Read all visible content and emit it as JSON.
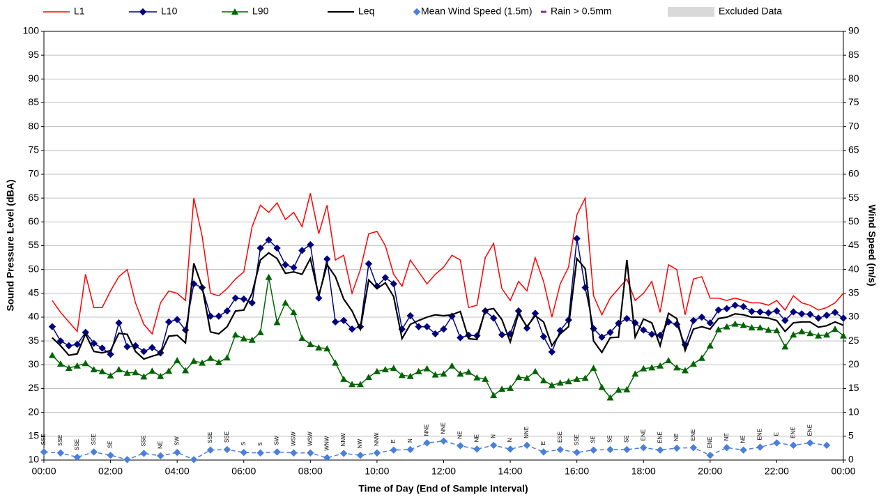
{
  "chart_data": {
    "type": "line",
    "ylabel": "Sound Pressure Level (dBA)",
    "y2label": "Wind Speed (m/s)",
    "xlabel": "Time of Day (End of Sample Interval)",
    "xlim": [
      0,
      24
    ],
    "xticks": [
      {
        "value": 0,
        "label": "00:00"
      },
      {
        "value": 2,
        "label": "02:00"
      },
      {
        "value": 4,
        "label": "04:00"
      },
      {
        "value": 6,
        "label": "06:00"
      },
      {
        "value": 8,
        "label": "08:00"
      },
      {
        "value": 10,
        "label": "10:00"
      },
      {
        "value": 12,
        "label": "12:00"
      },
      {
        "value": 14,
        "label": "14:00"
      },
      {
        "value": 16,
        "label": "16:00"
      },
      {
        "value": 18,
        "label": "18:00"
      },
      {
        "value": 20,
        "label": "20:00"
      },
      {
        "value": 22,
        "label": "22:00"
      },
      {
        "value": 24,
        "label": "00:00"
      }
    ],
    "ylim": [
      10,
      100
    ],
    "yticks": [
      10,
      15,
      20,
      25,
      30,
      35,
      40,
      45,
      50,
      55,
      60,
      65,
      70,
      75,
      80,
      85,
      90,
      95,
      100
    ],
    "y2lim": [
      0,
      90
    ],
    "y2ticks": [
      0,
      5,
      10,
      15,
      20,
      25,
      30,
      35,
      40,
      45,
      50,
      55,
      60,
      65,
      70,
      75,
      80,
      85,
      90
    ],
    "grid": true,
    "x": [
      0.25,
      0.5,
      0.75,
      1,
      1.25,
      1.5,
      1.75,
      2,
      2.25,
      2.5,
      2.75,
      3,
      3.25,
      3.5,
      3.75,
      4,
      4.25,
      4.5,
      4.75,
      5,
      5.25,
      5.5,
      5.75,
      6,
      6.25,
      6.5,
      6.75,
      7,
      7.25,
      7.5,
      7.75,
      8,
      8.25,
      8.5,
      8.75,
      9,
      9.25,
      9.5,
      9.75,
      10,
      10.25,
      10.5,
      10.75,
      11,
      11.25,
      11.5,
      11.75,
      12,
      12.25,
      12.5,
      12.75,
      13,
      13.25,
      13.5,
      13.75,
      14,
      14.25,
      14.5,
      14.75,
      15,
      15.25,
      15.5,
      15.75,
      16,
      16.25,
      16.5,
      16.75,
      17,
      17.25,
      17.5,
      17.75,
      18,
      18.25,
      18.5,
      18.75,
      19,
      19.25,
      19.5,
      19.75,
      20,
      20.25,
      20.5,
      20.75,
      21,
      21.25,
      21.5,
      21.75,
      22,
      22.25,
      22.5,
      22.75,
      23,
      23.25,
      23.5,
      23.75,
      24
    ],
    "series": [
      {
        "name": "L1",
        "color": "#ff0000",
        "marker": "none",
        "line_style": "solid",
        "values": [
          43.5,
          41,
          39,
          37,
          49,
          42,
          42,
          45.5,
          48.5,
          50,
          43,
          38.5,
          36.5,
          43,
          45.5,
          45,
          43.5,
          65,
          57,
          45,
          44.5,
          46,
          48,
          49.5,
          59,
          63.5,
          62,
          64,
          60.5,
          62,
          59,
          66,
          57.5,
          63.5,
          52,
          53,
          45,
          50,
          57.5,
          58,
          55,
          49,
          46.5,
          52,
          49.5,
          47,
          49,
          50.5,
          53,
          52,
          42,
          42.5,
          52.5,
          55.5,
          46,
          43.5,
          47.5,
          45.5,
          52.5,
          47.5,
          40,
          47,
          50.5,
          61.5,
          65,
          44.5,
          40.5,
          44,
          46,
          48,
          43.5,
          45,
          47.5,
          41,
          51,
          50,
          40.5,
          48,
          48.5,
          44,
          44,
          43.5,
          44,
          43.5,
          43,
          43,
          42.5,
          43.5,
          41.5,
          44.5,
          43,
          42.5,
          41.5,
          42,
          43,
          45
        ]
      },
      {
        "name": "L10",
        "color": "#000080",
        "marker": "diamond",
        "line_style": "solid",
        "values": [
          38,
          35,
          34,
          34.3,
          36.8,
          34.5,
          33.5,
          32.2,
          38.8,
          33.8,
          34,
          32.8,
          33.6,
          32.5,
          39,
          39.5,
          37.3,
          47,
          46.2,
          40.2,
          40.2,
          41.3,
          44,
          43.8,
          43,
          54.5,
          56.2,
          54.5,
          51,
          50.4,
          54,
          55.2,
          44,
          52.2,
          39,
          39.3,
          37.5,
          38,
          51.2,
          46.5,
          48.3,
          47,
          37.5,
          40.3,
          38,
          38,
          36.5,
          37.5,
          40.2,
          35.7,
          36.2,
          36.1,
          41.3,
          39.8,
          36.3,
          36.5,
          41.3,
          37.7,
          40.8,
          35.9,
          32.7,
          37.2,
          39.4,
          56.5,
          46.2,
          37.6,
          35.8,
          36.8,
          38.7,
          39.7,
          38.8,
          37.3,
          36.4,
          36.2,
          39,
          38.5,
          34.2,
          39.3,
          40,
          38.8,
          41.5,
          41.8,
          42.5,
          42.2,
          41.2,
          41.1,
          40.9,
          41.3,
          39.3,
          41.1,
          40.7,
          40.6,
          39.8,
          40.4,
          41,
          39.8
        ]
      },
      {
        "name": "L90",
        "color": "#006400",
        "marker": "triangle",
        "line_style": "solid",
        "values": [
          32,
          30.2,
          29.3,
          29.8,
          30.3,
          29,
          28.6,
          27.7,
          29,
          28.3,
          28.4,
          27.5,
          28.7,
          27.6,
          28.7,
          30.9,
          28.8,
          30.8,
          30.4,
          31.4,
          30.5,
          31.5,
          36.3,
          35.5,
          35.2,
          36.8,
          48.4,
          38.9,
          43,
          41,
          35.6,
          34.3,
          33.6,
          33.4,
          30.4,
          27,
          25.9,
          25.9,
          27.4,
          28.6,
          29,
          29.3,
          27.8,
          27.6,
          28.6,
          29.2,
          27.9,
          28.1,
          29.8,
          28.1,
          28.5,
          27.3,
          27,
          23.6,
          24.9,
          25.1,
          27.4,
          27.2,
          28.6,
          26.7,
          25.7,
          26.2,
          26.5,
          27,
          27.2,
          29.3,
          25.3,
          23.1,
          24.7,
          24.8,
          28.1,
          29.2,
          29.4,
          29.8,
          30.9,
          29.4,
          28.8,
          30.2,
          31.4,
          34,
          37.4,
          38,
          38.6,
          38.3,
          37.8,
          37.8,
          37.3,
          37.2,
          33.8,
          36.3,
          37,
          36.6,
          36.1,
          36.3,
          37.5,
          36.1
        ]
      },
      {
        "name": "Leq",
        "color": "#000000",
        "marker": "none",
        "line_style": "solid",
        "values": [
          35.7,
          34,
          32,
          32.3,
          36.5,
          32.8,
          32.5,
          33,
          36.6,
          36.4,
          32.8,
          31.2,
          31.8,
          32.3,
          36,
          36.2,
          34.6,
          51.3,
          46.4,
          36.9,
          36.5,
          38,
          41.3,
          41.5,
          45,
          52,
          53.5,
          52.3,
          49.2,
          49.5,
          49,
          52.3,
          44.5,
          51,
          48.5,
          43.8,
          41.3,
          37.5,
          47.8,
          46,
          47.2,
          44.3,
          35.5,
          38.5,
          39.3,
          40,
          40.5,
          40.3,
          40.5,
          41.2,
          35.5,
          35.3,
          41.5,
          41.8,
          39.5,
          34.8,
          40.8,
          38,
          40.3,
          39,
          34,
          36.5,
          38,
          52.3,
          50.2,
          35,
          32.6,
          35.7,
          35.8,
          52,
          35.8,
          39.6,
          38.8,
          34,
          40.8,
          39.7,
          33,
          37.5,
          38,
          37.5,
          39.7,
          40,
          40.7,
          40.5,
          40,
          40,
          39.8,
          39.3,
          37,
          38.8,
          39,
          39,
          37.9,
          38.2,
          39,
          38.3
        ]
      },
      {
        "name": "Mean Wind Speed (1.5m)",
        "color": "#4a7fdc",
        "marker": "diamond",
        "line_style": "dashed",
        "axis": "y2",
        "x": [
          0,
          0.5,
          1,
          1.5,
          2,
          2.5,
          3,
          3.5,
          4,
          4.5,
          5,
          5.5,
          6,
          6.5,
          7,
          7.5,
          8,
          8.5,
          9,
          9.5,
          10,
          10.5,
          11,
          11.5,
          12,
          12.5,
          13,
          13.5,
          14,
          14.5,
          15,
          15.5,
          16,
          16.5,
          17,
          17.5,
          18,
          18.5,
          19,
          19.5,
          20,
          20.5,
          21,
          21.5,
          22,
          22.5,
          23,
          23.5
        ],
        "values": [
          1.7,
          1.5,
          0.6,
          1.7,
          1,
          0.1,
          1.4,
          0.9,
          1.6,
          0.1,
          2.1,
          2.2,
          1.6,
          1.5,
          1.7,
          1.5,
          1.5,
          0.5,
          1.4,
          1,
          1.5,
          2.1,
          2.2,
          3.6,
          4,
          3,
          2.3,
          3.1,
          2.3,
          3.1,
          1.7,
          2.2,
          1.6,
          2.1,
          2.2,
          2.2,
          2.6,
          2.1,
          2.5,
          2.6,
          1,
          2.6,
          2.1,
          2.7,
          3.6,
          3.1,
          3.6,
          3.1
        ],
        "wind_direction": [
          "SSE",
          "SSE",
          "SSE",
          "SSE",
          "SE",
          null,
          "SSE",
          "NE",
          "SW",
          null,
          "SSE",
          "SSE",
          "S",
          "S",
          "SW",
          "WSW",
          "WSW",
          "WNW",
          "NNW",
          "NW",
          "NNW",
          "E",
          "N",
          "NNE",
          "NNE",
          "NE",
          "NE",
          "N",
          "N",
          "NNE",
          "E",
          "ESE",
          "SSE",
          "SE",
          "SE",
          "SE",
          "ENE",
          "ENE",
          "NE",
          "ENE",
          "ENE",
          "NE",
          "NE",
          "ENE",
          "E",
          "ENE",
          "ENE",
          null
        ]
      }
    ],
    "legend_extra": [
      {
        "name": "Rain > 0.5mm",
        "color": "#7030a0",
        "marker": "dash"
      },
      {
        "name": "Excluded Data",
        "color": "#d9d9d9",
        "marker": "box"
      }
    ],
    "legend": "top"
  }
}
